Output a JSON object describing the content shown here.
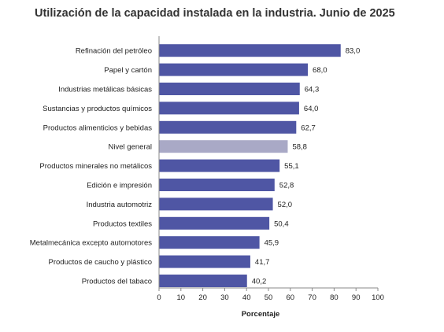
{
  "chart_data": {
    "type": "bar",
    "orientation": "horizontal",
    "title": "Utilización de la capacidad instalada en la industria. Junio de 2025",
    "xlabel": "Porcentaje",
    "ylabel": "",
    "xlim": [
      0,
      100
    ],
    "xticks": [
      "0",
      "10",
      "20",
      "30",
      "40",
      "50",
      "60",
      "70",
      "80",
      "90",
      "100"
    ],
    "categories": [
      "Refinación del petróleo",
      "Papel y cartón",
      "Industrias metálicas básicas",
      "Sustancias y productos químicos",
      "Productos alimenticios y bebidas",
      "Nivel general",
      "Productos minerales no metálicos",
      "Edición e impresión",
      "Industria automotriz",
      "Productos textiles",
      "Metalmecánica excepto automotores",
      "Productos de caucho y plástico",
      "Productos del tabaco"
    ],
    "values": [
      83.0,
      68.0,
      64.3,
      64.0,
      62.7,
      58.8,
      55.1,
      52.8,
      52.0,
      50.4,
      45.9,
      41.7,
      40.2
    ],
    "value_labels": [
      "83,0",
      "68,0",
      "64,3",
      "64,0",
      "62,7",
      "58,8",
      "55,1",
      "52,8",
      "52,0",
      "50,4",
      "45,9",
      "41,7",
      "40,2"
    ],
    "highlight_category": "Nivel general",
    "colors": {
      "bar": "#4f56a4",
      "highlight": "#a9a9c6",
      "axis": "#888888"
    },
    "grid": false,
    "legend": "none"
  }
}
